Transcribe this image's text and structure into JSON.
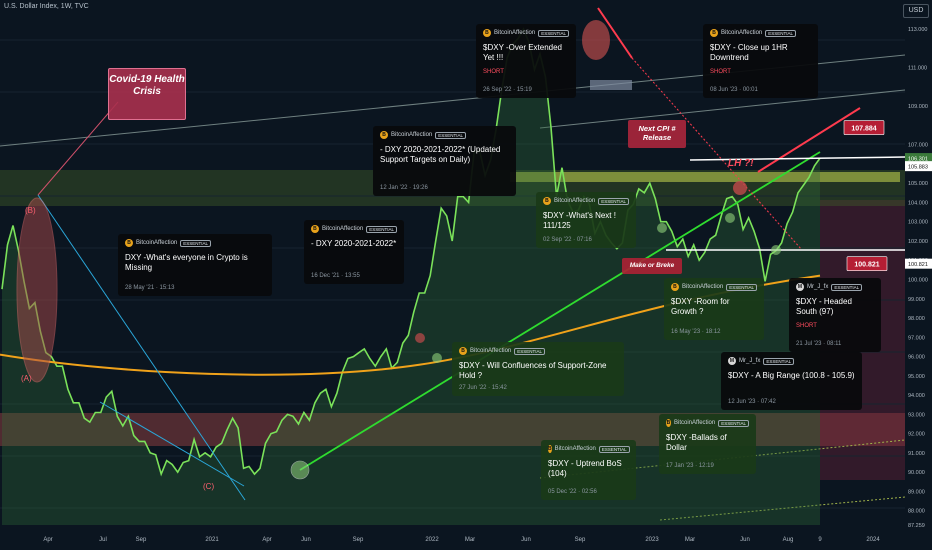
{
  "header": {
    "title": "U.S. Dollar Index, 1W, TVC",
    "currency": "USD"
  },
  "chart_data": {
    "type": "line",
    "ylim": [
      87.0,
      113.5
    ],
    "y_ticks": [
      "113.000",
      "111.000",
      "109.000",
      "107.000",
      "105.000",
      "104.000",
      "103.000",
      "102.000",
      "101.000",
      "100.000",
      "99.000",
      "98.000",
      "97.000",
      "96.000",
      "95.000",
      "94.000",
      "93.000",
      "92.000",
      "91.000",
      "90.000",
      "89.000",
      "88.000",
      "87.259"
    ],
    "x_ticks": [
      "Apr",
      "Jul",
      "Sep",
      "2021",
      "Apr",
      "Jun",
      "Sep",
      "2022",
      "Mar",
      "Jun",
      "Sep",
      "2023",
      "Mar",
      "Jun",
      "Aug",
      "9",
      "2024"
    ],
    "price_labels": [
      {
        "text": "106.301",
        "bg": "#3a7a3a"
      },
      {
        "text": "105.883",
        "bg": "#ffffff"
      },
      {
        "text": "100.821",
        "bg": "#ffffff"
      }
    ],
    "price_flags": [
      {
        "text": "107.884",
        "value": 107.884
      },
      {
        "text": "100.821",
        "value": 100.821
      }
    ],
    "series": [
      {
        "type": "price",
        "values": [
          99.5,
          101.8,
          102.8,
          101.5,
          99.9,
          98.5,
          98.8,
          97.3,
          96.2,
          96.0,
          95.5,
          95.5,
          94.3,
          93.6,
          93.6,
          92.8,
          92.6,
          93.1,
          93.1,
          93.9,
          94.2,
          92.9,
          92.4,
          92.9,
          91.9,
          91.6,
          91.6,
          91.0,
          90.9,
          89.9,
          90.6,
          90.4,
          90.0,
          90.5,
          90.6,
          91.7,
          90.8,
          91.0,
          90.8,
          91.3,
          91.5,
          92.2,
          92.8,
          92.3,
          90.2,
          90.3,
          89.9,
          90.2,
          91.5,
          92.0,
          92.1,
          92.7,
          93.0,
          92.9,
          92.5,
          93.1,
          92.7,
          93.6,
          94.1,
          94.3,
          93.4,
          94.1,
          95.2,
          95.9,
          96.0,
          96.2,
          96.4,
          95.9,
          95.5,
          96.0,
          96.4,
          95.4,
          95.7,
          96.7,
          97.1,
          98.3,
          99.3,
          99.3,
          100.2,
          102.0,
          103.7,
          103.3,
          102.0,
          104.3,
          104.3,
          104.0,
          106.6,
          106.7,
          105.4,
          106.2,
          107.8,
          109.8,
          111.5,
          112.2,
          112.5,
          113.0,
          112.3,
          110.9,
          111.7,
          110.5,
          107.9,
          104.3,
          105.8,
          104.1,
          103.5,
          103.6,
          104.3,
          103.9,
          102.4,
          103.0,
          102.3,
          101.9,
          101.6,
          101.9,
          103.6,
          103.9,
          104.7,
          104.5,
          105.0,
          104.2,
          103.0,
          103.0,
          102.5,
          101.7,
          102.1,
          101.2,
          101.8,
          101.0,
          101.4,
          102.1,
          102.3,
          103.3,
          104.2,
          104.3,
          103.9,
          102.6,
          103.2,
          102.5,
          101.6,
          99.9,
          101.3,
          101.5,
          101.9,
          102.9,
          103.5,
          104.5,
          104.9,
          105.3,
          105.9,
          106.3
        ]
      },
      {
        "type": "moving_average",
        "start_value": 96.1,
        "end_value": 100.2
      }
    ],
    "annotations": [
      "Covid-19 Health Crisis",
      "Next CPI # Release",
      "LH ?!",
      "Make or Breke",
      "(B)",
      "(A)",
      "(C)"
    ],
    "ideas": [
      {
        "author": "BitcoinAffection",
        "badge": "ESSENTIAL",
        "title": "DXY        -What's everyone in Crypto is Missing",
        "date": "28 May '21 · 15:13"
      },
      {
        "author": "BitcoinAffection",
        "badge": "ESSENTIAL",
        "title": "- DXY  2020-2021-2022*",
        "date": "16 Dec '21 · 13:55"
      },
      {
        "author": "BitcoinAffection",
        "badge": "ESSENTIAL",
        "title": "- DXY  2020-2021-2022* (Updated Support Targets on Daily)",
        "date": "12 Jan '22 · 19:26"
      },
      {
        "author": "BitcoinAffection",
        "badge": "ESSENTIAL",
        "title": "$DXY -Over Extended Yet !!!",
        "signal": "SHORT",
        "date": "26 Sep '22 · 15:19"
      },
      {
        "author": "BitcoinAffection",
        "badge": "ESSENTIAL",
        "title": "$DXY -What's Next ! 111/125",
        "date": "02 Sep '22 · 07:16"
      },
      {
        "author": "BitcoinAffection",
        "badge": "ESSENTIAL",
        "title": "$DXY - Will Confluences of Support-Zone Hold ?",
        "date": "27 Jun '22 · 15:42"
      },
      {
        "author": "BitcoinAffection",
        "badge": "ESSENTIAL",
        "title": "$DXY - Uptrend BoS (104)",
        "date": "05 Dec '22 · 02:56"
      },
      {
        "author": "BitcoinAffection",
        "badge": "ESSENTIAL",
        "title": "$DXY - Close up 1HR Downtrend",
        "signal": "SHORT",
        "date": "08 Jun '23 · 00:01"
      },
      {
        "author": "BitcoinAffection",
        "badge": "ESSENTIAL",
        "title": "$DXY -Room for Growth ?",
        "date": "16 May '23 · 18:12"
      },
      {
        "author": "Mr_J_fx",
        "badge": "ESSENTIAL",
        "title": "$DXY - Headed South (97)",
        "signal": "SHORT",
        "date": "21 Jul '23 · 08:11"
      },
      {
        "author": "Mr_J_fx",
        "badge": "ESSENTIAL",
        "title": "$DXY - A Big Range (100.8 - 105.9)",
        "date": "12 Jun '23 · 07:42"
      },
      {
        "author": "BitcoinAffection",
        "badge": "ESSENTIAL",
        "title": "$DXY -Ballads of Dollar",
        "date": "17 Jan '23 · 12:19"
      }
    ]
  },
  "colors": {
    "background": "#0b1520",
    "price_line": "#7be25a",
    "moving_average": "#f0a21a",
    "trendline": "#2fdc2f",
    "resistance": "#ff3b4e",
    "support_zone": "#c8d850",
    "demand_zone": "#c25050",
    "short": "#ff4d5e"
  }
}
